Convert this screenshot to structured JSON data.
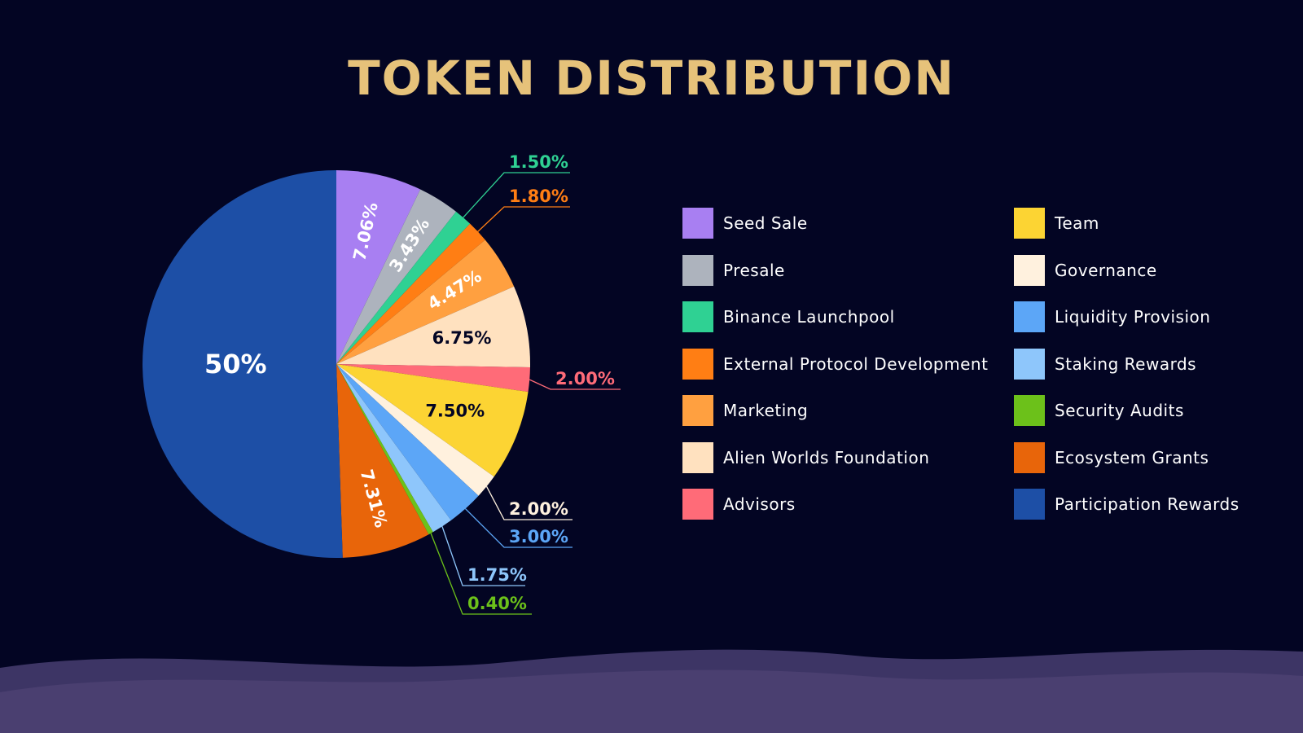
{
  "page": {
    "background": "#030523",
    "title_color": "#e6c27a"
  },
  "chart_data": {
    "type": "pie",
    "title": "TOKEN DISTRIBUTION",
    "legend_placement": "right",
    "slices": [
      {
        "label": "Seed Sale",
        "value": 7.06,
        "value_label": "7.06%",
        "color": "#a87ff2",
        "label_color": "#ffffff"
      },
      {
        "label": "Presale",
        "value": 3.43,
        "value_label": "3.43%",
        "color": "#adb3bd",
        "label_color": "#ffffff"
      },
      {
        "label": "Binance Launchpool",
        "value": 1.5,
        "value_label": "1.50%",
        "color": "#2fd193",
        "label_color": "#2fd193"
      },
      {
        "label": "External Protocol Development",
        "value": 1.8,
        "value_label": "1.80%",
        "color": "#ff7e14",
        "label_color": "#ff7e14"
      },
      {
        "label": "Marketing",
        "value": 4.47,
        "value_label": "4.47%",
        "color": "#ffa040",
        "label_color": "#ffffff"
      },
      {
        "label": "Alien Worlds Foundation",
        "value": 6.75,
        "value_label": "6.75%",
        "color": "#ffe1bf",
        "label_color": "#030523"
      },
      {
        "label": "Advisors",
        "value": 2.0,
        "value_label": "2.00%",
        "color": "#ff6b78",
        "label_color": "#ff6b78"
      },
      {
        "label": "Team",
        "value": 7.5,
        "value_label": "7.50%",
        "color": "#fcd433",
        "label_color": "#030523"
      },
      {
        "label": "Governance",
        "value": 2.0,
        "value_label": "2.00%",
        "color": "#fff1de",
        "label_color": "#fff1de"
      },
      {
        "label": "Liquidity Provision",
        "value": 3.0,
        "value_label": "3.00%",
        "color": "#5ca6f7",
        "label_color": "#5ca6f7"
      },
      {
        "label": "Staking Rewards",
        "value": 1.75,
        "value_label": "1.75%",
        "color": "#8ec6fb",
        "label_color": "#8ec6fb"
      },
      {
        "label": "Security Audits",
        "value": 0.4,
        "value_label": "0.40%",
        "color": "#6cc11a",
        "label_color": "#6cc11a"
      },
      {
        "label": "Ecosystem Grants",
        "value": 7.31,
        "value_label": "7.31%",
        "color": "#e8650a",
        "label_color": "#ffffff"
      },
      {
        "label": "Participation Rewards",
        "value": 50,
        "value_label": "50%",
        "color": "#1d4fa6",
        "label_color": "#ffffff"
      }
    ]
  },
  "legend": {
    "left": [
      "Seed Sale",
      "Presale",
      "Binance Launchpool",
      "External Protocol Development",
      "Marketing",
      "Alien Worlds Foundation",
      "Advisors"
    ],
    "right": [
      "Team",
      "Governance",
      "Liquidity Provision",
      "Staking Rewards",
      "Security Audits",
      "Ecosystem Grants",
      "Participation Rewards"
    ]
  }
}
